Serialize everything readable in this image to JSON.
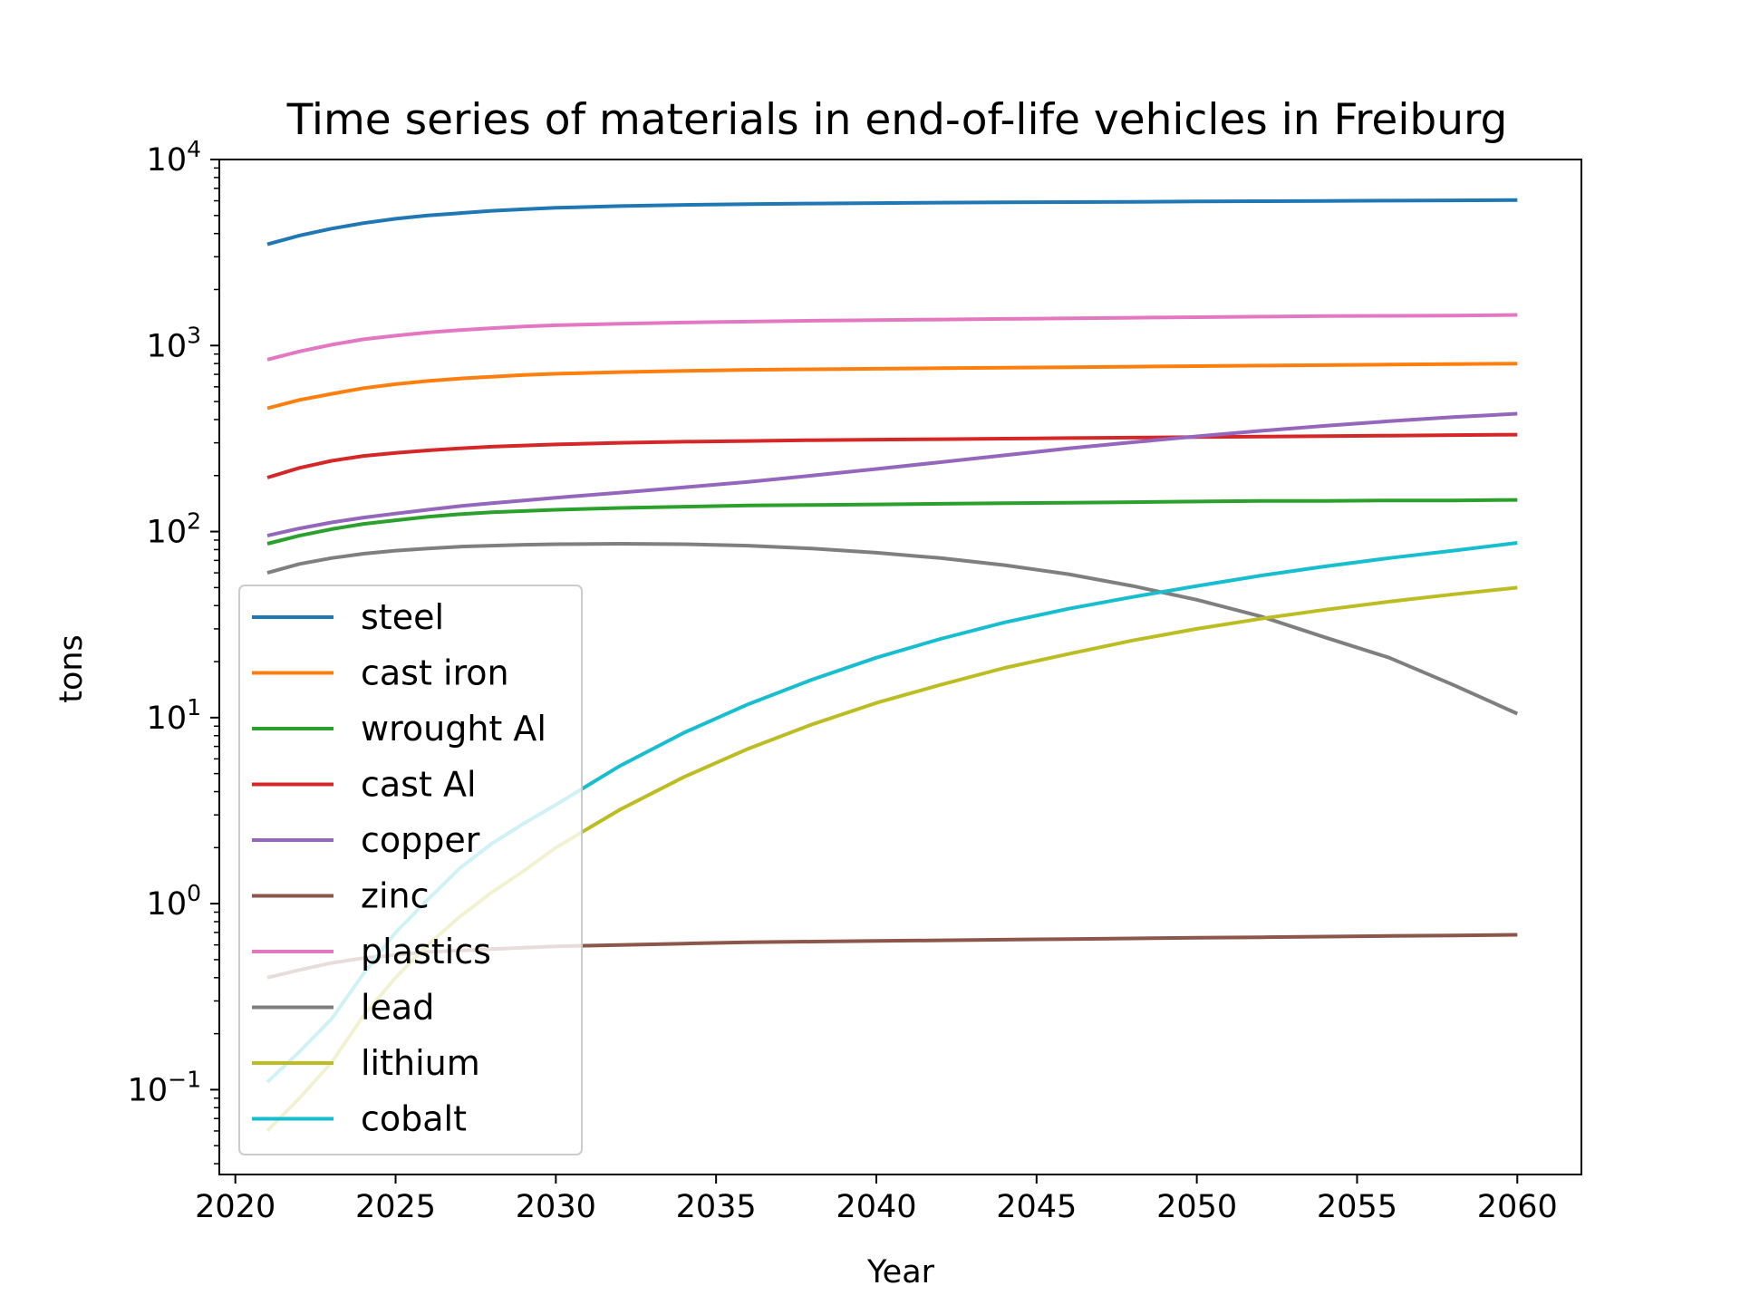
{
  "chart_data": {
    "type": "line",
    "title": "Time series of materials in end-of-life vehicles in Freiburg",
    "xlabel": "Year",
    "ylabel": "tons",
    "xlim": [
      2019.5,
      2062
    ],
    "ylim": [
      0.035,
      10000
    ],
    "yscale": "log",
    "x_ticks": [
      2020,
      2025,
      2030,
      2035,
      2040,
      2045,
      2050,
      2055,
      2060
    ],
    "x_tick_labels": [
      "2020",
      "2025",
      "2030",
      "2035",
      "2040",
      "2045",
      "2050",
      "2055",
      "2060"
    ],
    "y_ticks": [
      {
        "value": 0.1,
        "base": "10",
        "exp": "−1"
      },
      {
        "value": 1,
        "base": "10",
        "exp": "0"
      },
      {
        "value": 10,
        "base": "10",
        "exp": "1"
      },
      {
        "value": 100,
        "base": "10",
        "exp": "2"
      },
      {
        "value": 1000,
        "base": "10",
        "exp": "3"
      },
      {
        "value": 10000,
        "base": "10",
        "exp": "4"
      }
    ],
    "grid": false,
    "legend_position": "lower-left",
    "x": [
      2021,
      2022,
      2023,
      2024,
      2025,
      2026,
      2027,
      2028,
      2029,
      2030,
      2032,
      2034,
      2036,
      2038,
      2040,
      2042,
      2044,
      2046,
      2048,
      2050,
      2052,
      2054,
      2056,
      2058,
      2060
    ],
    "series": [
      {
        "name": "steel",
        "color": "#1f77b4",
        "values": [
          3500,
          3900,
          4250,
          4550,
          4800,
          5000,
          5150,
          5300,
          5400,
          5500,
          5620,
          5700,
          5750,
          5800,
          5830,
          5860,
          5880,
          5900,
          5920,
          5950,
          5970,
          5990,
          6010,
          6030,
          6050
        ]
      },
      {
        "name": "cast iron",
        "color": "#ff7f0e",
        "values": [
          460,
          510,
          550,
          590,
          620,
          645,
          665,
          680,
          695,
          705,
          720,
          730,
          740,
          745,
          750,
          755,
          760,
          765,
          770,
          775,
          780,
          785,
          790,
          795,
          800
        ]
      },
      {
        "name": "wrought Al",
        "color": "#2ca02c",
        "values": [
          86,
          95,
          103,
          110,
          115,
          120,
          124,
          127,
          129,
          131,
          134,
          136,
          138,
          139,
          140,
          141,
          142,
          143,
          144,
          145,
          146,
          146,
          147,
          147,
          148
        ]
      },
      {
        "name": "cast Al",
        "color": "#d62728",
        "values": [
          195,
          220,
          240,
          255,
          265,
          273,
          280,
          286,
          290,
          294,
          300,
          304,
          307,
          310,
          312,
          314,
          316,
          318,
          320,
          322,
          324,
          326,
          328,
          330,
          332
        ]
      },
      {
        "name": "copper",
        "color": "#9467bd",
        "values": [
          95,
          104,
          112,
          119,
          125,
          131,
          137,
          142,
          147,
          152,
          162,
          173,
          185,
          200,
          217,
          236,
          257,
          280,
          302,
          325,
          348,
          370,
          392,
          412,
          430
        ]
      },
      {
        "name": "zinc",
        "color": "#8c564b",
        "values": [
          0.4,
          0.44,
          0.48,
          0.51,
          0.53,
          0.55,
          0.56,
          0.57,
          0.58,
          0.59,
          0.6,
          0.61,
          0.62,
          0.625,
          0.63,
          0.635,
          0.64,
          0.645,
          0.65,
          0.655,
          0.66,
          0.665,
          0.67,
          0.675,
          0.68
        ]
      },
      {
        "name": "plastics",
        "color": "#e377c2",
        "values": [
          840,
          930,
          1010,
          1080,
          1130,
          1175,
          1210,
          1240,
          1265,
          1285,
          1310,
          1330,
          1345,
          1360,
          1370,
          1380,
          1390,
          1400,
          1410,
          1420,
          1430,
          1440,
          1445,
          1450,
          1460
        ]
      },
      {
        "name": "lead",
        "color": "#7f7f7f",
        "values": [
          60,
          67,
          72,
          76,
          79,
          81,
          83,
          84,
          85,
          85.5,
          86,
          85.5,
          84,
          81,
          77,
          72,
          66,
          59,
          51,
          43,
          35,
          27,
          21,
          15,
          10.5
        ]
      },
      {
        "name": "lithium",
        "color": "#bcbd22",
        "values": [
          0.06,
          0.09,
          0.14,
          0.25,
          0.4,
          0.6,
          0.85,
          1.15,
          1.5,
          2.0,
          3.2,
          4.8,
          6.8,
          9.2,
          12.0,
          15.0,
          18.5,
          22.0,
          26.0,
          30.0,
          34.0,
          38.0,
          42.0,
          46.0,
          50.0
        ]
      },
      {
        "name": "cobalt",
        "color": "#17becf",
        "values": [
          0.11,
          0.16,
          0.24,
          0.42,
          0.7,
          1.05,
          1.55,
          2.1,
          2.7,
          3.4,
          5.5,
          8.3,
          11.8,
          16.0,
          21.0,
          26.5,
          32.5,
          38.5,
          44.5,
          51.0,
          58.0,
          65.0,
          72.0,
          79.0,
          87.0
        ]
      }
    ]
  }
}
